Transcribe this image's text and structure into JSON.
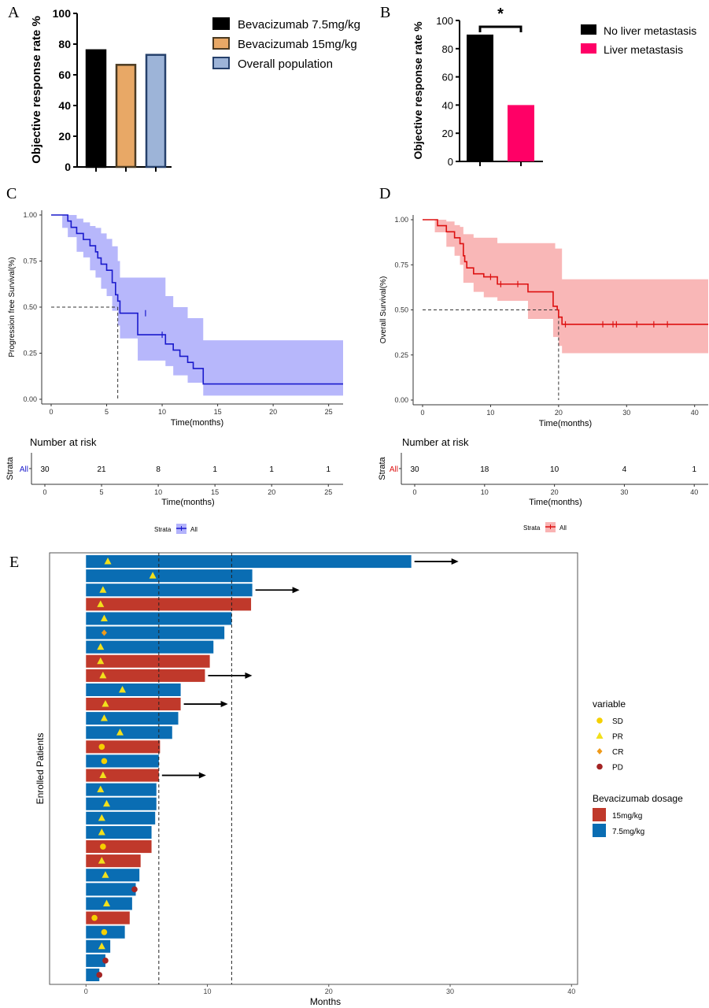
{
  "chart_data": [
    {
      "panel": "A",
      "type": "bar",
      "ylabel": "Objective response rate %",
      "ylim": [
        0,
        100
      ],
      "yticks": [
        0,
        20,
        40,
        60,
        80,
        100
      ],
      "categories": [
        "Bevacizumab 7.5mg/kg",
        "Bevacizumab 15mg/kg",
        "Overall population"
      ],
      "values": [
        76,
        66.5,
        73
      ],
      "colors": [
        "#000000",
        "#e8a866",
        "#9db4d8"
      ],
      "edge_colors": [
        "#000000",
        "#4a3a22",
        "#25406b"
      ],
      "legend": [
        "Bevacizumab 7.5mg/kg",
        "Bevacizumab 15mg/kg",
        "Overall population"
      ],
      "legend_position": "right"
    },
    {
      "panel": "B",
      "type": "bar",
      "ylabel": "Objective response rate %",
      "ylim": [
        0,
        100
      ],
      "yticks": [
        0,
        20,
        40,
        60,
        80,
        100
      ],
      "categories": [
        "No liver metastasis",
        "Liver metastasis"
      ],
      "values": [
        90,
        40
      ],
      "colors": [
        "#000000",
        "#ff0066"
      ],
      "significance": "*",
      "legend": [
        "No liver metastasis",
        "Liver metastasis"
      ],
      "legend_position": "right"
    },
    {
      "panel": "C",
      "type": "line",
      "ylabel": "Progression free Survival(%)",
      "xlabel": "Time(months)",
      "xlim": [
        0,
        26.3
      ],
      "ylim": [
        0,
        1
      ],
      "xticks": [
        0,
        5,
        10,
        15,
        20,
        25
      ],
      "yticks": [
        "0.00",
        "0.25",
        "0.50",
        "0.75",
        "1.00"
      ],
      "color": "#1a1acc",
      "ci_color": "#b3b3fb",
      "median": 6.0,
      "curve": [
        [
          0,
          1
        ],
        [
          1,
          1
        ],
        [
          1.5,
          0.967
        ],
        [
          1.8,
          0.933
        ],
        [
          2.3,
          0.9
        ],
        [
          2.9,
          0.867
        ],
        [
          3.5,
          0.833
        ],
        [
          4.0,
          0.8
        ],
        [
          4.2,
          0.767
        ],
        [
          4.5,
          0.733
        ],
        [
          5.0,
          0.7
        ],
        [
          5.5,
          0.633
        ],
        [
          5.8,
          0.567
        ],
        [
          6.0,
          0.533
        ],
        [
          6.2,
          0.467
        ],
        [
          7.8,
          0.35
        ],
        [
          10.3,
          0.3
        ],
        [
          11.0,
          0.267
        ],
        [
          11.6,
          0.233
        ],
        [
          12.3,
          0.2
        ],
        [
          12.8,
          0.167
        ],
        [
          13.7,
          0.083
        ],
        [
          26.3,
          0.083
        ]
      ],
      "ci_upper": [
        [
          0,
          1
        ],
        [
          1,
          1
        ],
        [
          1.5,
          1
        ],
        [
          2.3,
          0.98
        ],
        [
          2.9,
          0.96
        ],
        [
          3.5,
          0.94
        ],
        [
          4.0,
          0.93
        ],
        [
          4.5,
          0.9
        ],
        [
          5.0,
          0.87
        ],
        [
          5.5,
          0.83
        ],
        [
          6.0,
          0.75
        ],
        [
          6.2,
          0.66
        ],
        [
          10.3,
          0.56
        ],
        [
          11.0,
          0.5
        ],
        [
          12.3,
          0.44
        ],
        [
          13.7,
          0.32
        ],
        [
          26.3,
          0.32
        ]
      ],
      "ci_lower": [
        [
          0,
          1
        ],
        [
          1,
          0.93
        ],
        [
          1.5,
          0.88
        ],
        [
          2.3,
          0.8
        ],
        [
          2.9,
          0.77
        ],
        [
          3.5,
          0.7
        ],
        [
          4.0,
          0.66
        ],
        [
          4.5,
          0.6
        ],
        [
          5.0,
          0.56
        ],
        [
          5.5,
          0.48
        ],
        [
          6.0,
          0.4
        ],
        [
          6.2,
          0.33
        ],
        [
          7.8,
          0.21
        ],
        [
          10.3,
          0.18
        ],
        [
          11.0,
          0.13
        ],
        [
          12.3,
          0.09
        ],
        [
          13.7,
          0.02
        ],
        [
          26.3,
          0.02
        ]
      ],
      "censor_marks": [
        [
          8.5,
          0.467
        ],
        [
          10.0,
          0.35
        ]
      ],
      "risk_table": {
        "title": "Number at risk",
        "ylabel": "Strata",
        "row_label": "All",
        "xlabel": "Time(months)",
        "times": [
          0,
          5,
          10,
          15,
          20,
          25
        ],
        "counts": [
          30,
          21,
          8,
          1,
          1,
          1
        ]
      },
      "legend": {
        "title": "Strata",
        "label": "All"
      }
    },
    {
      "panel": "D",
      "type": "line",
      "ylabel": "Overall Survival(%)",
      "xlabel": "Time(months)",
      "xlim": [
        0,
        42
      ],
      "ylim": [
        0,
        1
      ],
      "xticks": [
        0,
        10,
        20,
        30,
        40
      ],
      "yticks": [
        "0.00",
        "0.25",
        "0.50",
        "0.75",
        "1.00"
      ],
      "color": "#dd1111",
      "ci_color": "#f9b3b3",
      "median": 20.0,
      "curve": [
        [
          0,
          1
        ],
        [
          1.8,
          1
        ],
        [
          2.2,
          0.967
        ],
        [
          3.5,
          0.933
        ],
        [
          4.7,
          0.9
        ],
        [
          5.5,
          0.867
        ],
        [
          6.0,
          0.8
        ],
        [
          6.2,
          0.767
        ],
        [
          6.5,
          0.733
        ],
        [
          7.5,
          0.7
        ],
        [
          9.0,
          0.683
        ],
        [
          11.0,
          0.643
        ],
        [
          15.5,
          0.6
        ],
        [
          19.2,
          0.52
        ],
        [
          19.8,
          0.5
        ],
        [
          20.0,
          0.46
        ],
        [
          20.5,
          0.42
        ],
        [
          42,
          0.42
        ]
      ],
      "ci_upper": [
        [
          0,
          1
        ],
        [
          1.8,
          1
        ],
        [
          3.5,
          0.99
        ],
        [
          4.7,
          0.97
        ],
        [
          5.5,
          0.96
        ],
        [
          6.0,
          0.92
        ],
        [
          7.5,
          0.9
        ],
        [
          11.0,
          0.87
        ],
        [
          19.5,
          0.84
        ],
        [
          20.5,
          0.67
        ],
        [
          42,
          0.67
        ]
      ],
      "ci_lower": [
        [
          0,
          1
        ],
        [
          1.8,
          0.93
        ],
        [
          3.5,
          0.85
        ],
        [
          4.7,
          0.8
        ],
        [
          5.5,
          0.75
        ],
        [
          6.0,
          0.65
        ],
        [
          7.5,
          0.6
        ],
        [
          9.0,
          0.57
        ],
        [
          11.0,
          0.55
        ],
        [
          15.5,
          0.45
        ],
        [
          19.2,
          0.35
        ],
        [
          20.0,
          0.3
        ],
        [
          20.5,
          0.26
        ],
        [
          42,
          0.26
        ]
      ],
      "censor_marks": [
        [
          10,
          0.683
        ],
        [
          11.5,
          0.643
        ],
        [
          14,
          0.643
        ],
        [
          21,
          0.42
        ],
        [
          26.5,
          0.42
        ],
        [
          28,
          0.42
        ],
        [
          28.5,
          0.42
        ],
        [
          31.5,
          0.42
        ],
        [
          34,
          0.42
        ],
        [
          36,
          0.42
        ]
      ],
      "risk_table": {
        "title": "Number at risk",
        "ylabel": "Strata",
        "row_label": "All",
        "xlabel": "Time(months)",
        "times": [
          0,
          10,
          20,
          30,
          40
        ],
        "counts": [
          30,
          18,
          10,
          4,
          1
        ]
      },
      "legend": {
        "title": "Strata",
        "label": "All"
      }
    },
    {
      "panel": "E",
      "type": "bar",
      "orientation": "horizontal",
      "xlabel": "Months",
      "ylabel": "Enrolled Patients",
      "xlim": [
        -3,
        40.5
      ],
      "xticks": [
        0,
        10,
        20,
        30,
        40
      ],
      "reference_lines": [
        6,
        12
      ],
      "dosage_colors": {
        "15mg/kg": "#c0392b",
        "7.5mg/kg": "#0a6db3"
      },
      "marker_colors": {
        "SD": "#f5d000",
        "PR": "#f2e01c",
        "CR": "#ef9a1a",
        "PD": "#a32424"
      },
      "rows": [
        {
          "months": 26.8,
          "dosage": "7.5mg/kg",
          "marker": "PR",
          "at": 1.8,
          "arrow": true
        },
        {
          "months": 13.7,
          "dosage": "7.5mg/kg",
          "marker": "PR",
          "at": 5.5,
          "arrow": false
        },
        {
          "months": 13.7,
          "dosage": "7.5mg/kg",
          "marker": "PR",
          "at": 1.4,
          "arrow": true
        },
        {
          "months": 13.6,
          "dosage": "15mg/kg",
          "marker": "PR",
          "at": 1.2,
          "arrow": false
        },
        {
          "months": 12.0,
          "dosage": "7.5mg/kg",
          "marker": "PR",
          "at": 1.5,
          "arrow": false
        },
        {
          "months": 11.4,
          "dosage": "7.5mg/kg",
          "marker": "CR",
          "at": 1.5,
          "arrow": false
        },
        {
          "months": 10.5,
          "dosage": "7.5mg/kg",
          "marker": "PR",
          "at": 1.2,
          "arrow": false
        },
        {
          "months": 10.2,
          "dosage": "15mg/kg",
          "marker": "PR",
          "at": 1.2,
          "arrow": false
        },
        {
          "months": 9.8,
          "dosage": "15mg/kg",
          "marker": "PR",
          "at": 1.4,
          "arrow": true
        },
        {
          "months": 7.8,
          "dosage": "7.5mg/kg",
          "marker": "PR",
          "at": 3.0,
          "arrow": false
        },
        {
          "months": 7.8,
          "dosage": "15mg/kg",
          "marker": "PR",
          "at": 1.6,
          "arrow": true
        },
        {
          "months": 7.6,
          "dosage": "7.5mg/kg",
          "marker": "PR",
          "at": 1.5,
          "arrow": false
        },
        {
          "months": 7.1,
          "dosage": "7.5mg/kg",
          "marker": "PR",
          "at": 2.8,
          "arrow": false
        },
        {
          "months": 6.1,
          "dosage": "15mg/kg",
          "marker": "SD",
          "at": 1.3,
          "arrow": false
        },
        {
          "months": 6.0,
          "dosage": "7.5mg/kg",
          "marker": "SD",
          "at": 1.5,
          "arrow": false
        },
        {
          "months": 6.0,
          "dosage": "15mg/kg",
          "marker": "PR",
          "at": 1.4,
          "arrow": true
        },
        {
          "months": 5.8,
          "dosage": "7.5mg/kg",
          "marker": "PR",
          "at": 1.2,
          "arrow": false
        },
        {
          "months": 5.8,
          "dosage": "7.5mg/kg",
          "marker": "PR",
          "at": 1.7,
          "arrow": false
        },
        {
          "months": 5.7,
          "dosage": "7.5mg/kg",
          "marker": "PR",
          "at": 1.3,
          "arrow": false
        },
        {
          "months": 5.4,
          "dosage": "7.5mg/kg",
          "marker": "PR",
          "at": 1.3,
          "arrow": false
        },
        {
          "months": 5.4,
          "dosage": "15mg/kg",
          "marker": "SD",
          "at": 1.4,
          "arrow": false
        },
        {
          "months": 4.5,
          "dosage": "15mg/kg",
          "marker": "PR",
          "at": 1.3,
          "arrow": false
        },
        {
          "months": 4.4,
          "dosage": "7.5mg/kg",
          "marker": "PR",
          "at": 1.6,
          "arrow": false
        },
        {
          "months": 4.1,
          "dosage": "7.5mg/kg",
          "marker": "PD",
          "at": 4.0,
          "arrow": false
        },
        {
          "months": 3.8,
          "dosage": "7.5mg/kg",
          "marker": "PR",
          "at": 1.7,
          "arrow": false
        },
        {
          "months": 3.6,
          "dosage": "15mg/kg",
          "marker": "SD",
          "at": 0.7,
          "arrow": false
        },
        {
          "months": 3.2,
          "dosage": "7.5mg/kg",
          "marker": "SD",
          "at": 1.5,
          "arrow": false
        },
        {
          "months": 2.0,
          "dosage": "7.5mg/kg",
          "marker": "PR",
          "at": 1.3,
          "arrow": false
        },
        {
          "months": 1.6,
          "dosage": "7.5mg/kg",
          "marker": "PD",
          "at": 1.6,
          "arrow": false
        },
        {
          "months": 1.1,
          "dosage": "7.5mg/kg",
          "marker": "PD",
          "at": 1.1,
          "arrow": false
        }
      ],
      "legend": {
        "variable_title": "variable",
        "variables": [
          "SD",
          "PR",
          "CR",
          "PD"
        ],
        "dosage_title": "Bevacizumab dosage",
        "dosages": [
          "15mg/kg",
          "7.5mg/kg"
        ]
      }
    }
  ],
  "panel_labels": [
    "A",
    "B",
    "C",
    "D",
    "E"
  ]
}
